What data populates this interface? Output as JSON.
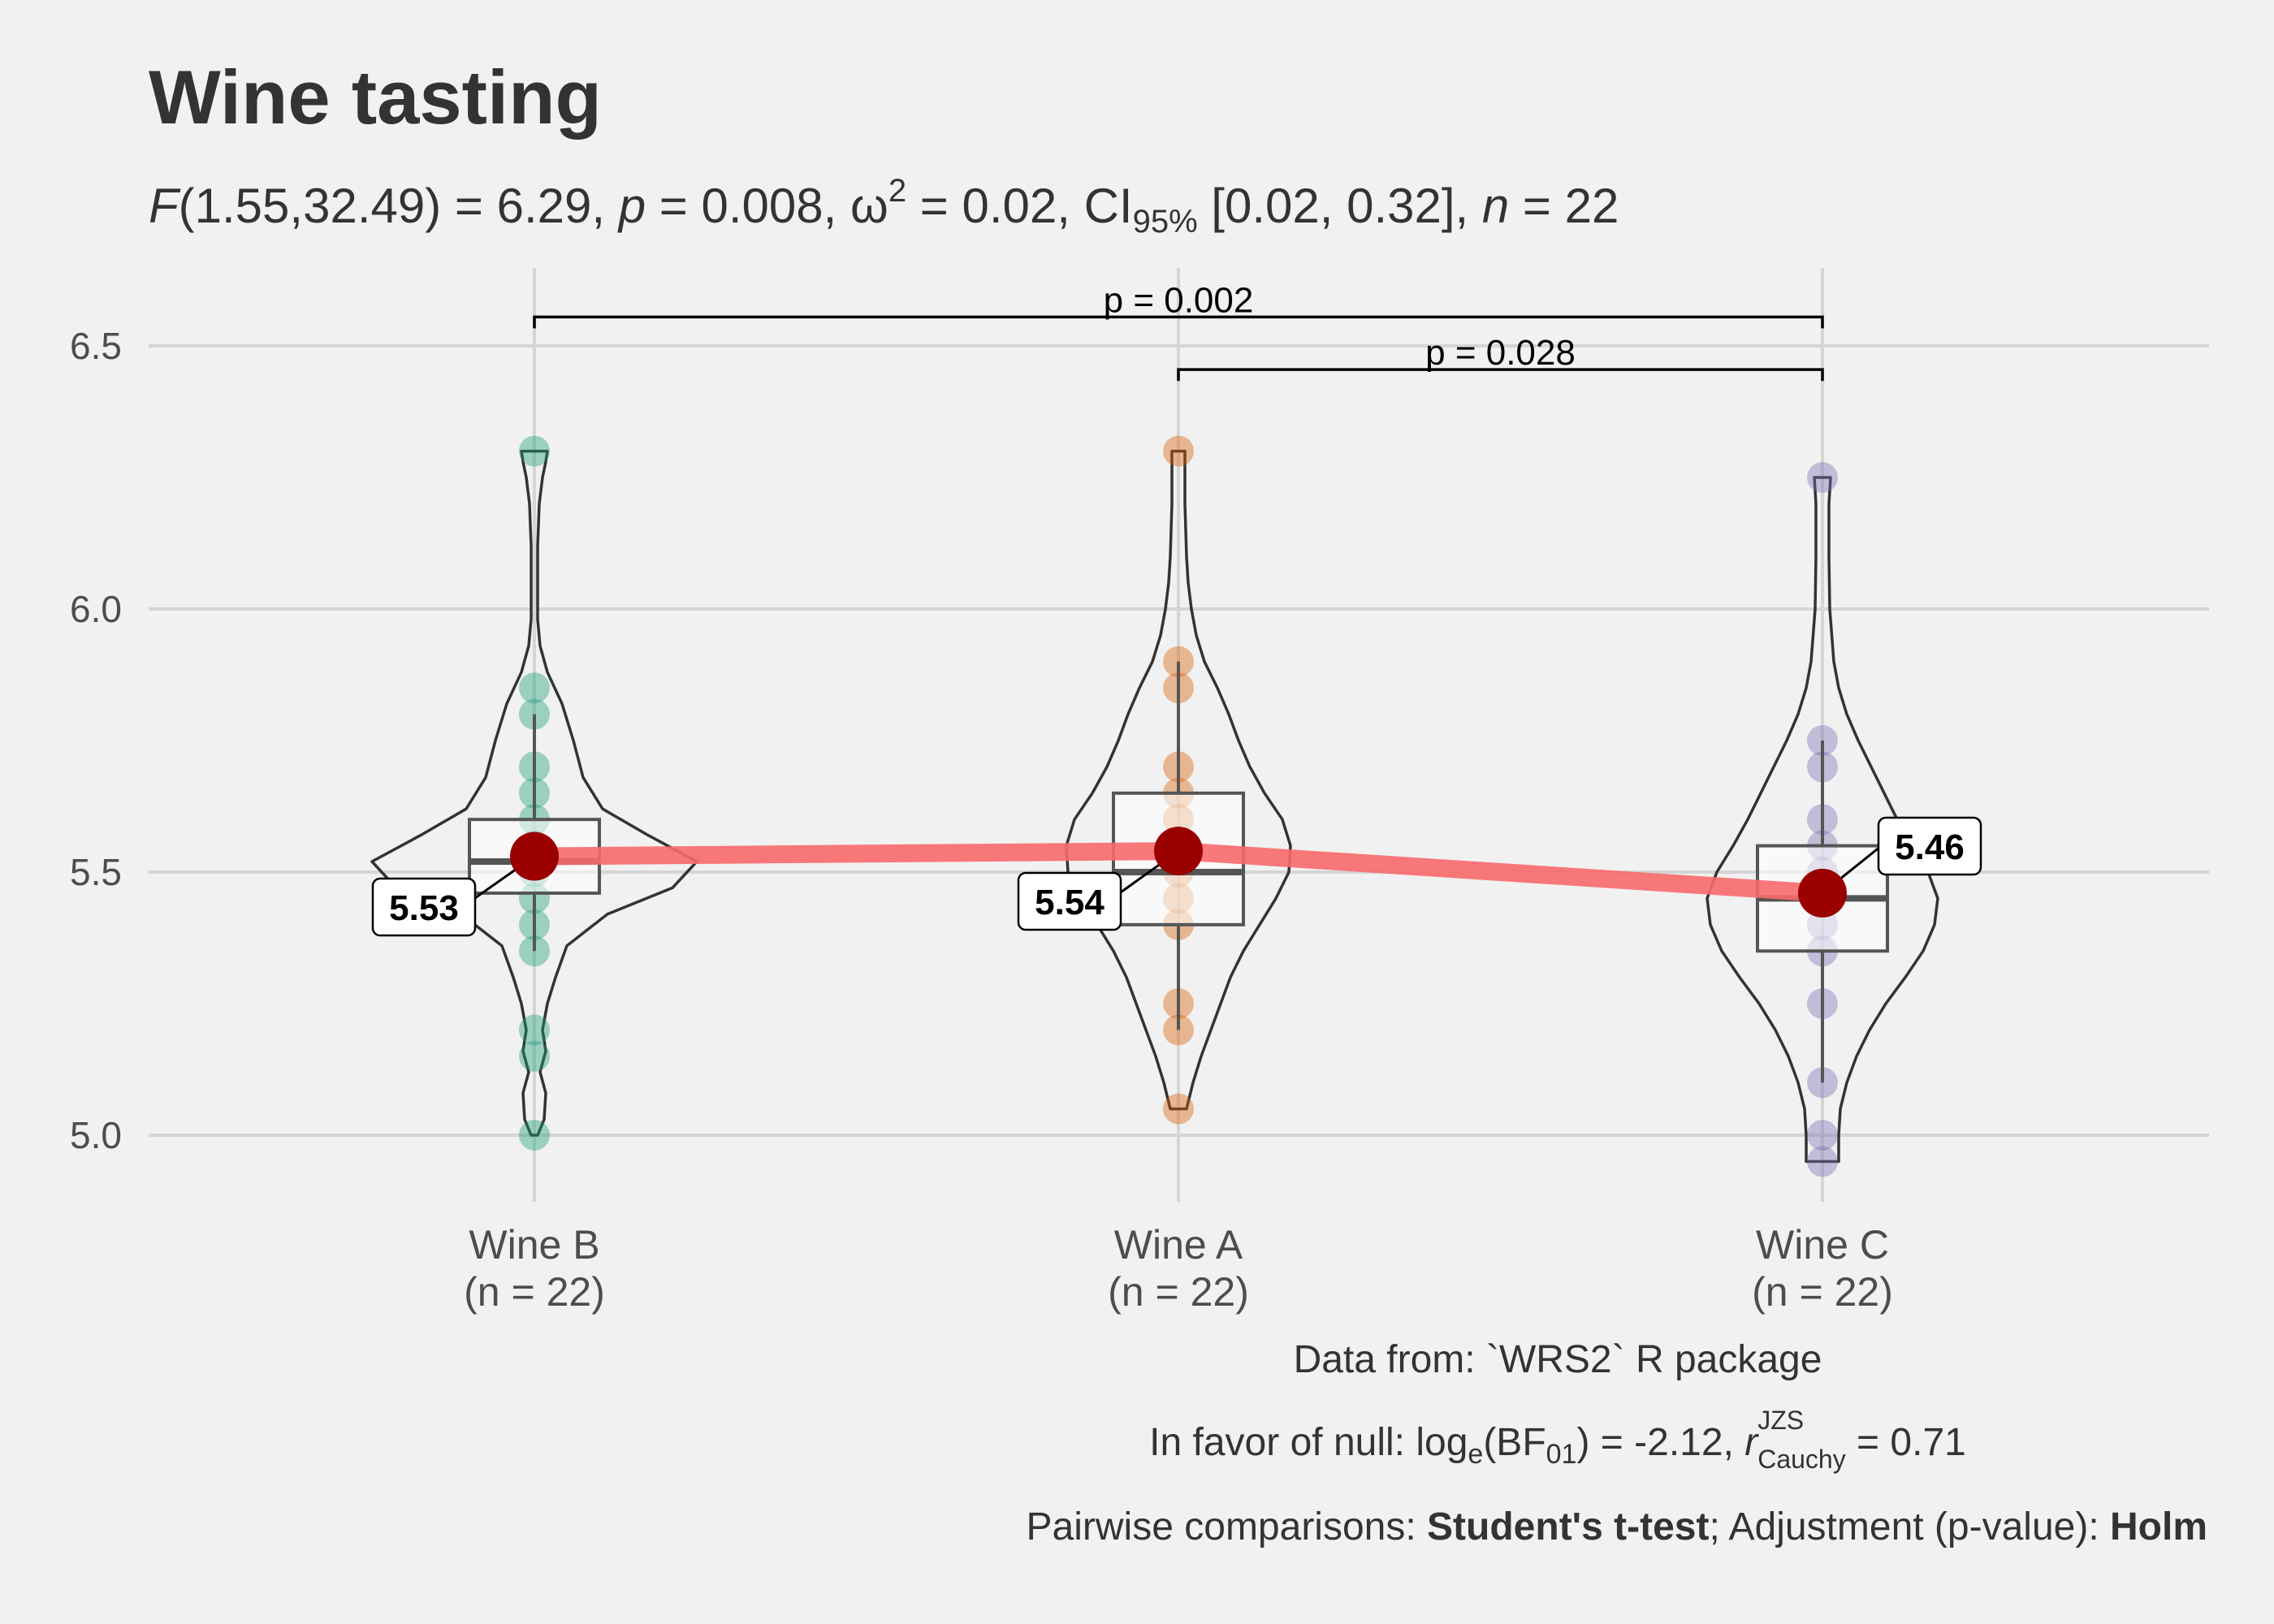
{
  "chart_data": {
    "type": "violin-box-scatter",
    "title": "Wine tasting",
    "subtitle": {
      "F_label": "F",
      "F_args": "(1.55,32.49) = 6.29, ",
      "p_label": "p",
      "p_text": " = 0.008, ",
      "omega": "ω",
      "omega_sup": "2",
      "omega_text": " = 0.02, CI",
      "ci_sub": "95%",
      "ci_text": " [0.02, 0.32], ",
      "n_label": "n",
      "n_text": " = 22"
    },
    "y_axis": {
      "ticks": [
        5.0,
        5.5,
        6.0,
        6.5
      ],
      "tick_labels": [
        "5.0",
        "5.5",
        "6.0",
        "6.5"
      ],
      "range": [
        4.88,
        6.66
      ]
    },
    "groups": [
      {
        "name": "Wine B",
        "n_label": "(n = 22)",
        "color": "#1B9E77",
        "mean": 5.53,
        "mean_label": "5.53",
        "box": {
          "q1": 5.46,
          "median": 5.52,
          "q3": 5.6,
          "whisker_low": 5.35,
          "whisker_high": 5.8
        },
        "violin": [
          [
            5.0,
            0.02
          ],
          [
            5.03,
            0.06
          ],
          [
            5.08,
            0.07
          ],
          [
            5.12,
            0.035
          ],
          [
            5.16,
            0.07
          ],
          [
            5.2,
            0.05
          ],
          [
            5.25,
            0.08
          ],
          [
            5.3,
            0.13
          ],
          [
            5.36,
            0.2
          ],
          [
            5.42,
            0.45
          ],
          [
            5.47,
            0.85
          ],
          [
            5.52,
            1.0
          ],
          [
            5.57,
            0.7
          ],
          [
            5.62,
            0.42
          ],
          [
            5.68,
            0.3
          ],
          [
            5.75,
            0.24
          ],
          [
            5.82,
            0.17
          ],
          [
            5.88,
            0.08
          ],
          [
            5.93,
            0.035
          ],
          [
            5.98,
            0.02
          ],
          [
            6.05,
            0.02
          ],
          [
            6.12,
            0.02
          ],
          [
            6.2,
            0.03
          ],
          [
            6.25,
            0.05
          ],
          [
            6.28,
            0.07
          ],
          [
            6.3,
            0.08
          ]
        ],
        "points": [
          5.0,
          5.15,
          5.2,
          5.35,
          5.4,
          5.45,
          5.5,
          5.55,
          5.6,
          5.65,
          5.7,
          5.8,
          5.85,
          6.3
        ]
      },
      {
        "name": "Wine A",
        "n_label": "(n = 22)",
        "color": "#D95F02",
        "mean": 5.54,
        "mean_label": "5.54",
        "box": {
          "q1": 5.4,
          "median": 5.5,
          "q3": 5.65,
          "whisker_low": 5.2,
          "whisker_high": 5.9
        },
        "violin": [
          [
            5.05,
            0.05
          ],
          [
            5.1,
            0.09
          ],
          [
            5.15,
            0.14
          ],
          [
            5.2,
            0.2
          ],
          [
            5.25,
            0.26
          ],
          [
            5.3,
            0.32
          ],
          [
            5.35,
            0.4
          ],
          [
            5.4,
            0.5
          ],
          [
            5.45,
            0.6
          ],
          [
            5.5,
            0.68
          ],
          [
            5.55,
            0.69
          ],
          [
            5.6,
            0.64
          ],
          [
            5.65,
            0.53
          ],
          [
            5.7,
            0.44
          ],
          [
            5.75,
            0.37
          ],
          [
            5.8,
            0.31
          ],
          [
            5.85,
            0.24
          ],
          [
            5.9,
            0.16
          ],
          [
            5.95,
            0.11
          ],
          [
            6.0,
            0.08
          ],
          [
            6.05,
            0.06
          ],
          [
            6.1,
            0.05
          ],
          [
            6.2,
            0.04
          ],
          [
            6.3,
            0.04
          ]
        ],
        "points": [
          5.05,
          5.2,
          5.25,
          5.4,
          5.45,
          5.5,
          5.55,
          5.6,
          5.65,
          5.7,
          5.85,
          5.9,
          6.3
        ]
      },
      {
        "name": "Wine C",
        "n_label": "(n = 22)",
        "color": "#7570B3",
        "mean": 5.46,
        "mean_label": "5.46",
        "box": {
          "q1": 5.35,
          "median": 5.45,
          "q3": 5.55,
          "whisker_low": 5.1,
          "whisker_high": 5.75
        },
        "violin": [
          [
            4.95,
            0.1
          ],
          [
            5.0,
            0.1
          ],
          [
            5.05,
            0.11
          ],
          [
            5.1,
            0.15
          ],
          [
            5.15,
            0.21
          ],
          [
            5.2,
            0.29
          ],
          [
            5.25,
            0.39
          ],
          [
            5.3,
            0.51
          ],
          [
            5.35,
            0.62
          ],
          [
            5.4,
            0.69
          ],
          [
            5.45,
            0.71
          ],
          [
            5.5,
            0.65
          ],
          [
            5.55,
            0.55
          ],
          [
            5.6,
            0.46
          ],
          [
            5.65,
            0.38
          ],
          [
            5.7,
            0.3
          ],
          [
            5.75,
            0.22
          ],
          [
            5.8,
            0.15
          ],
          [
            5.85,
            0.1
          ],
          [
            5.9,
            0.07
          ],
          [
            6.0,
            0.045
          ],
          [
            6.1,
            0.04
          ],
          [
            6.2,
            0.04
          ],
          [
            6.25,
            0.05
          ]
        ],
        "points": [
          4.95,
          5.0,
          5.1,
          5.25,
          5.35,
          5.4,
          5.45,
          5.5,
          5.55,
          5.6,
          5.7,
          5.75,
          6.25
        ]
      }
    ],
    "mean_line_color": "#F8696B",
    "mean_point_color": "#9B0000",
    "pairwise": [
      {
        "from": "Wine B",
        "to": "Wine C",
        "y": 6.555,
        "label": "p = 0.002"
      },
      {
        "from": "Wine A",
        "to": "Wine C",
        "y": 6.455,
        "label": "p = 0.028"
      }
    ],
    "caption": {
      "line1": "Data from: `WRS2` R package",
      "line2": {
        "prefix": "In favor of null: log",
        "log_sub": "e",
        "bf_text": "(BF",
        "bf_sub": "01",
        "mid": ") = -2.12, ",
        "r_label": "r",
        "r_sup": "JZS",
        "r_sub": "Cauchy",
        "end": " = 0.71"
      },
      "line3": {
        "prefix": "Pairwise comparisons: ",
        "test": "Student's t-test",
        "mid": "; Adjustment (p-value): ",
        "method": "Holm"
      }
    }
  }
}
